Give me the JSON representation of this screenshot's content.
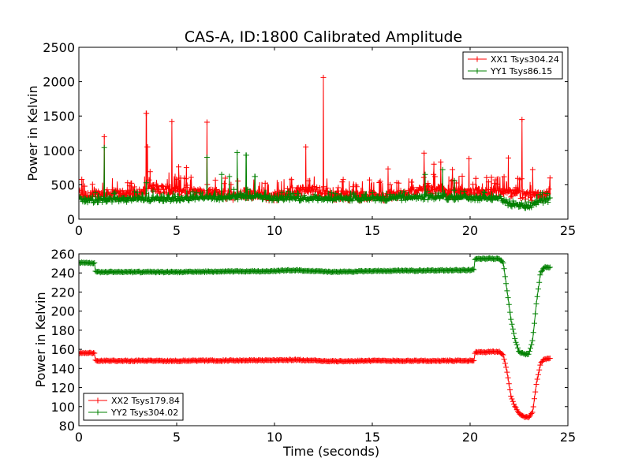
{
  "figure_title": "CAS-A, ID:1800 Calibrated Amplitude",
  "chart_data": [
    {
      "type": "line",
      "title": "CAS-A, ID:1800 Calibrated Amplitude",
      "xlabel": "",
      "ylabel": "Power in Kelvin",
      "xlim": [
        0,
        25
      ],
      "ylim": [
        0,
        2500
      ],
      "xticks": [
        0,
        5,
        10,
        15,
        20,
        25
      ],
      "yticks": [
        0,
        500,
        1000,
        1500,
        2000,
        2500
      ],
      "grid": false,
      "legend_position": "top-right",
      "series": [
        {
          "name": "XX1 Tsys304.24",
          "color": "#ff0000",
          "marker": "+",
          "baseline": [
            [
              0,
              370
            ],
            [
              0.8,
              350
            ],
            [
              1.5,
              360
            ],
            [
              3,
              360
            ],
            [
              3.5,
              450
            ],
            [
              4.5,
              430
            ],
            [
              5.5,
              400
            ],
            [
              6.5,
              380
            ],
            [
              8,
              340
            ],
            [
              9,
              340
            ],
            [
              10,
              330
            ],
            [
              11,
              400
            ],
            [
              12,
              420
            ],
            [
              13,
              350
            ],
            [
              15,
              330
            ],
            [
              16,
              340
            ],
            [
              17,
              390
            ],
            [
              18,
              420
            ],
            [
              19,
              380
            ],
            [
              20,
              380
            ],
            [
              21,
              380
            ],
            [
              22,
              390
            ],
            [
              23,
              330
            ],
            [
              24.1,
              370
            ]
          ],
          "noise": 140,
          "spikes": [
            [
              1.3,
              1200
            ],
            [
              3.45,
              1540
            ],
            [
              3.5,
              1050
            ],
            [
              4.75,
              1420
            ],
            [
              5.1,
              760
            ],
            [
              5.5,
              750
            ],
            [
              6.55,
              1410
            ],
            [
              11.6,
              1050
            ],
            [
              12.5,
              2060
            ],
            [
              15.8,
              730
            ],
            [
              17.65,
              960
            ],
            [
              18.15,
              800
            ],
            [
              18.5,
              830
            ],
            [
              19.1,
              720
            ],
            [
              19.95,
              880
            ],
            [
              21.95,
              890
            ],
            [
              22.65,
              1450
            ],
            [
              23.2,
              720
            ]
          ]
        },
        {
          "name": "YY1 Tsys86.15",
          "color": "#008000",
          "marker": "+",
          "baseline": [
            [
              0,
              290
            ],
            [
              0.8,
              270
            ],
            [
              2,
              280
            ],
            [
              6,
              300
            ],
            [
              8,
              320
            ],
            [
              9,
              330
            ],
            [
              10,
              300
            ],
            [
              12,
              300
            ],
            [
              15,
              290
            ],
            [
              17,
              310
            ],
            [
              18,
              320
            ],
            [
              20,
              300
            ],
            [
              21.5,
              300
            ],
            [
              22,
              220
            ],
            [
              23,
              170
            ],
            [
              23.3,
              230
            ],
            [
              24.1,
              290
            ]
          ],
          "noise": 70,
          "spikes": [
            [
              1.3,
              1040
            ],
            [
              3.45,
              530
            ],
            [
              6.55,
              900
            ],
            [
              7.3,
              650
            ],
            [
              7.7,
              620
            ],
            [
              8.1,
              970
            ],
            [
              8.55,
              930
            ],
            [
              9,
              620
            ],
            [
              17.7,
              650
            ],
            [
              18.6,
              720
            ],
            [
              19.2,
              560
            ]
          ]
        }
      ]
    },
    {
      "type": "line",
      "title": "",
      "xlabel": "Time (seconds)",
      "ylabel": "Power in Kelvin",
      "xlim": [
        0,
        25
      ],
      "ylim": [
        80,
        260
      ],
      "xticks": [
        0,
        5,
        10,
        15,
        20,
        25
      ],
      "yticks": [
        80,
        100,
        120,
        140,
        160,
        180,
        200,
        220,
        240,
        260
      ],
      "grid": false,
      "legend_position": "bottom-left",
      "series": [
        {
          "name": "XX2 Tsys179.84",
          "color": "#ff0000",
          "marker": "+",
          "points": [
            [
              0,
              156
            ],
            [
              0.8,
              156
            ],
            [
              0.85,
              148
            ],
            [
              5,
              148
            ],
            [
              10,
              148.5
            ],
            [
              11,
              149
            ],
            [
              13,
              147.5
            ],
            [
              15,
              148
            ],
            [
              20.2,
              148
            ],
            [
              20.25,
              157
            ],
            [
              21.5,
              157.5
            ],
            [
              21.7,
              154
            ],
            [
              21.9,
              135
            ],
            [
              22.1,
              110
            ],
            [
              22.3,
              100
            ],
            [
              22.5,
              93
            ],
            [
              22.8,
              89
            ],
            [
              23.0,
              89
            ],
            [
              23.2,
              95
            ],
            [
              23.4,
              125
            ],
            [
              23.6,
              145
            ],
            [
              23.8,
              150
            ],
            [
              24.1,
              150
            ]
          ],
          "noise": 1.2
        },
        {
          "name": "YY2 Tsys304.02",
          "color": "#008000",
          "marker": "+",
          "points": [
            [
              0,
              251
            ],
            [
              0.8,
              250
            ],
            [
              0.85,
              241
            ],
            [
              5,
              241
            ],
            [
              10,
              242
            ],
            [
              11,
              243
            ],
            [
              13,
              241
            ],
            [
              15,
              242
            ],
            [
              20,
              243
            ],
            [
              20.2,
              244
            ],
            [
              20.25,
              255
            ],
            [
              21.5,
              255
            ],
            [
              21.7,
              250
            ],
            [
              21.9,
              220
            ],
            [
              22.1,
              190
            ],
            [
              22.3,
              170
            ],
            [
              22.5,
              157
            ],
            [
              22.8,
              155
            ],
            [
              23.0,
              155
            ],
            [
              23.2,
              170
            ],
            [
              23.4,
              210
            ],
            [
              23.6,
              240
            ],
            [
              23.8,
              246
            ],
            [
              24.1,
              246
            ]
          ],
          "noise": 1.2
        }
      ]
    }
  ]
}
